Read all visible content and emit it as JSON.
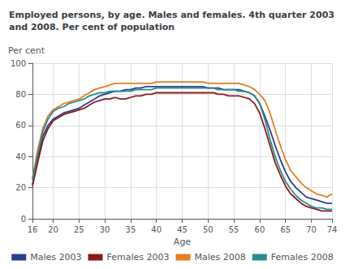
{
  "chart_data": {
    "type": "line",
    "title": "Employed persons, by age. Males and females. 4th quarter 2003\nand 2008. Per cent of population",
    "x_label": "Age",
    "y_label": "Per cent",
    "x": [
      16,
      17,
      18,
      19,
      20,
      21,
      22,
      23,
      24,
      25,
      26,
      27,
      28,
      29,
      30,
      31,
      32,
      33,
      34,
      35,
      36,
      37,
      38,
      39,
      40,
      41,
      42,
      43,
      44,
      45,
      46,
      47,
      48,
      49,
      50,
      51,
      52,
      53,
      54,
      55,
      56,
      57,
      58,
      59,
      60,
      61,
      62,
      63,
      64,
      65,
      66,
      67,
      68,
      69,
      70,
      71,
      72,
      73,
      74
    ],
    "series": [
      {
        "name": "Males 2003",
        "color": "#2b3f8c",
        "values": [
          22,
          38,
          53,
          60,
          64,
          66,
          68,
          69,
          70,
          71,
          73,
          75,
          77,
          79,
          80,
          81,
          82,
          82,
          83,
          83,
          84,
          84,
          85,
          85,
          85,
          85,
          85,
          85,
          85,
          85,
          85,
          85,
          85,
          85,
          84,
          84,
          84,
          83,
          83,
          83,
          83,
          82,
          81,
          79,
          74,
          66,
          57,
          47,
          38,
          30,
          24,
          20,
          17,
          14,
          13,
          12,
          11,
          10,
          10
        ]
      },
      {
        "name": "Females 2003",
        "color": "#8b1a1a",
        "values": [
          21,
          36,
          50,
          58,
          63,
          65,
          67,
          68,
          69,
          70,
          71,
          73,
          75,
          76,
          77,
          77,
          78,
          77,
          77,
          78,
          79,
          79,
          80,
          80,
          81,
          81,
          81,
          81,
          81,
          81,
          81,
          81,
          81,
          81,
          81,
          81,
          80,
          80,
          79,
          79,
          79,
          78,
          77,
          74,
          68,
          58,
          47,
          36,
          28,
          21,
          16,
          13,
          10,
          8,
          7,
          6,
          5,
          5,
          5
        ]
      },
      {
        "name": "Males 2008",
        "color": "#e87d1e",
        "values": [
          26,
          44,
          58,
          66,
          70,
          72,
          74,
          75,
          76,
          77,
          79,
          81,
          83,
          84,
          85,
          86,
          87,
          87,
          87,
          87,
          87,
          87,
          87,
          87,
          88,
          88,
          88,
          88,
          88,
          88,
          88,
          88,
          88,
          88,
          87,
          87,
          87,
          87,
          87,
          87,
          87,
          86,
          85,
          83,
          80,
          76,
          68,
          57,
          47,
          38,
          31,
          27,
          23,
          20,
          18,
          16,
          15,
          14,
          16
        ]
      },
      {
        "name": "Females 2008",
        "color": "#2b8b8b",
        "values": [
          25,
          41,
          56,
          64,
          69,
          71,
          72,
          74,
          75,
          76,
          77,
          79,
          80,
          81,
          81,
          82,
          82,
          82,
          82,
          82,
          83,
          83,
          83,
          83,
          84,
          84,
          84,
          84,
          84,
          84,
          84,
          84,
          84,
          84,
          84,
          84,
          83,
          83,
          83,
          83,
          82,
          82,
          81,
          79,
          74,
          64,
          51,
          40,
          31,
          24,
          19,
          15,
          12,
          10,
          8,
          7,
          7,
          6,
          6
        ]
      }
    ],
    "xlim": [
      16,
      74
    ],
    "xticks": [
      16,
      20,
      25,
      30,
      35,
      40,
      45,
      50,
      55,
      60,
      65,
      70,
      74
    ],
    "ylim": [
      0,
      100
    ],
    "yticks": [
      0,
      20,
      40,
      60,
      80,
      100
    ],
    "grid": true,
    "legend": "bottom"
  }
}
